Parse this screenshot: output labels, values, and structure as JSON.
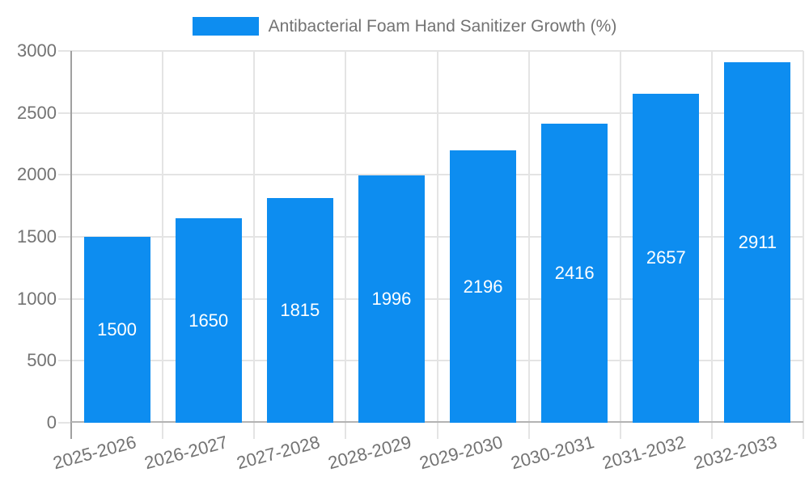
{
  "chart_data": {
    "type": "bar",
    "title": "",
    "legend": {
      "label": "Antibacterial Foam Hand Sanitizer Growth (%)",
      "position": "top"
    },
    "categories": [
      "2025-2026",
      "2026-2027",
      "2027-2028",
      "2028-2029",
      "2029-2030",
      "2030-2031",
      "2031-2032",
      "2032-2033"
    ],
    "series": [
      {
        "name": "Antibacterial Foam Hand Sanitizer Growth (%)",
        "values": [
          1500,
          1650,
          1815,
          1996,
          2196,
          2416,
          2657,
          2911
        ],
        "value_labels": [
          "1500",
          "1650",
          "1815",
          "1996",
          "2196",
          "2416",
          "2657",
          "2911"
        ]
      }
    ],
    "xlabel": "",
    "ylabel": "",
    "ylim": [
      0,
      3000
    ],
    "yticks": [
      0,
      500,
      1000,
      1500,
      2000,
      2500,
      3000
    ],
    "ytick_labels": [
      "0",
      "500",
      "1000",
      "1500",
      "2000",
      "2500",
      "3000"
    ],
    "grid": true,
    "colors": {
      "bar": "#0d8df0",
      "grid": "#e4e4e4",
      "y_axis": "#a0a0a0",
      "x_axis": "#b3b3b3",
      "axis_text": "#737373",
      "value_label_text": "#ffffff",
      "background": "#ffffff"
    }
  }
}
